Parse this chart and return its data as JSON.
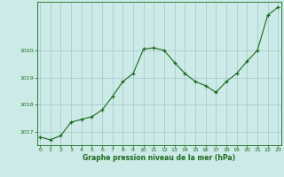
{
  "x": [
    0,
    1,
    2,
    3,
    4,
    5,
    6,
    7,
    8,
    9,
    10,
    11,
    12,
    13,
    14,
    15,
    16,
    17,
    18,
    19,
    20,
    21,
    22,
    23
  ],
  "y": [
    1016.8,
    1016.7,
    1016.85,
    1017.35,
    1017.45,
    1017.55,
    1017.8,
    1018.3,
    1018.85,
    1019.15,
    1020.05,
    1020.1,
    1020.0,
    1019.55,
    1019.15,
    1018.85,
    1018.7,
    1018.45,
    1018.85,
    1019.15,
    1019.6,
    1020.0,
    1021.3,
    1021.6
  ],
  "line_color": "#1a6b1a",
  "marker": "+",
  "bg_color": "#cceae7",
  "grid_color": "#aacccc",
  "axis_color": "#1a6b1a",
  "xlabel": "Graphe pression niveau de la mer (hPa)",
  "yticks": [
    1017,
    1018,
    1019,
    1020
  ],
  "xticks": [
    0,
    1,
    2,
    3,
    4,
    5,
    6,
    7,
    8,
    9,
    10,
    11,
    12,
    13,
    14,
    15,
    16,
    17,
    18,
    19,
    20,
    21,
    22,
    23
  ],
  "ylim": [
    1016.5,
    1021.8
  ],
  "xlim": [
    -0.3,
    23.3
  ]
}
